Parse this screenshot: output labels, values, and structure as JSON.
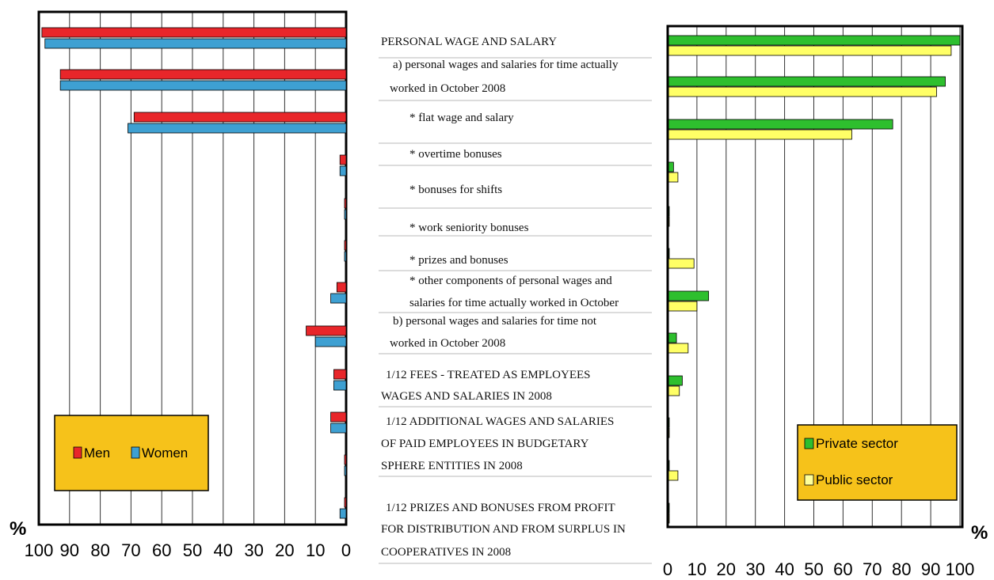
{
  "chart_data": [
    {
      "type": "bar",
      "orientation": "horizontal",
      "x_direction": "reversed",
      "categories": [
        "PERSONAL WAGE AND SALARY",
        "a)  personal wages and salaries for time actually worked in October 2008",
        "*  flat wage and salary",
        "*  overtime bonuses",
        "*  bonuses for shifts",
        "*  work seniority bonuses",
        "*  prizes and bonuses",
        "*  other components of personal wages and salaries for time actually worked in October",
        "b)  personal wages and salaries for time not worked in October 2008",
        "1/12 FEES - TREATED AS EMPLOYEES WAGES AND SALARIES IN 2008",
        "1/12 ADDITIONAL WAGES AND SALARIES OF PAID EMPLOYEES IN BUDGETARY SPHERE ENTITIES IN 2008",
        "1/12 PRIZES AND BONUSES FROM PROFIT FOR DISTRIBUTION AND FROM SURPLUS IN COOPERATIVES IN 2008"
      ],
      "series": [
        {
          "name": "Men",
          "color": "#e8262a",
          "values": [
            99,
            93,
            69,
            2,
            0.5,
            0.3,
            3,
            13,
            4,
            5,
            0.5,
            0.5
          ]
        },
        {
          "name": "Women",
          "color": "#3ea0d2",
          "values": [
            98,
            93,
            71,
            2,
            0.3,
            0.3,
            5,
            10,
            4,
            5,
            0.3,
            2
          ]
        }
      ],
      "xlim": [
        0,
        100
      ],
      "xticks": [
        "100",
        "90",
        "80",
        "70",
        "60",
        "50",
        "40",
        "30",
        "20",
        "10",
        "0"
      ],
      "unit_label": "%",
      "legend_position": "bottom-left",
      "grid": true
    },
    {
      "type": "bar",
      "orientation": "horizontal",
      "categories_ref": "same as left chart",
      "series": [
        {
          "name": "Private sector",
          "color": "#2ebf2e",
          "values": [
            100,
            95,
            77,
            2,
            0.5,
            0.5,
            14,
            3,
            5,
            0.3,
            0.5,
            0.3
          ]
        },
        {
          "name": "Public sector",
          "color": "#f2f24a",
          "values": [
            97,
            92,
            63,
            3.5,
            0.3,
            9,
            10,
            7,
            4,
            0.5,
            3.5,
            0.3
          ]
        }
      ],
      "xlim": [
        0,
        100
      ],
      "xticks": [
        "0",
        "10",
        "20",
        "30",
        "40",
        "50",
        "60",
        "70",
        "80",
        "90",
        "100"
      ],
      "unit_label": "%",
      "legend_position": "bottom-right",
      "grid": true
    }
  ],
  "colors": {
    "legend_bg": "#f6c21a",
    "category_divider": "#b8b8b8"
  }
}
